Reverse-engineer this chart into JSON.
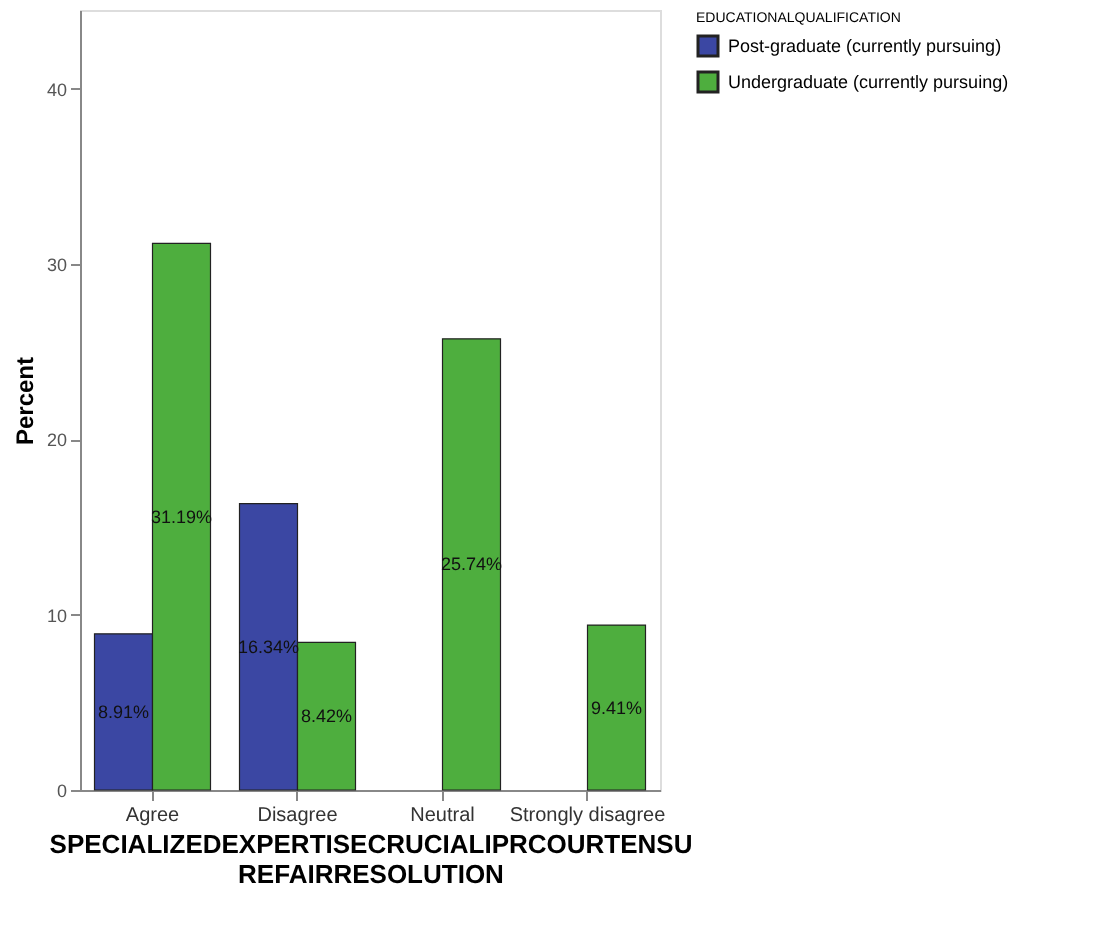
{
  "chart_data": {
    "type": "bar",
    "xlabel": "SPECIALIZEDEXPERTISECRUCIALIPRCOURTENSU\nREFAIRRESOLUTION",
    "ylabel": "Percent",
    "legend_title": "EDUCATIONALQUALIFICATION",
    "categories": [
      "Agree",
      "Disagree",
      "Neutral",
      "Strongly disagree"
    ],
    "series": [
      {
        "name": "Post-graduate (currently pursuing)",
        "color": "#3b47a3",
        "values": [
          8.91,
          16.34,
          null,
          null
        ],
        "value_labels": [
          "8.91%",
          "16.34%",
          null,
          null
        ]
      },
      {
        "name": "Undergraduate (currently pursuing)",
        "color": "#4eae3e",
        "values": [
          31.19,
          8.42,
          25.74,
          9.41
        ],
        "value_labels": [
          "31.19%",
          "8.42%",
          "25.74%",
          "9.41%"
        ]
      }
    ],
    "ylim": [
      0,
      44.5
    ],
    "yticks": [
      0,
      10,
      20,
      30,
      40
    ],
    "grid": false,
    "legend": "top right"
  }
}
